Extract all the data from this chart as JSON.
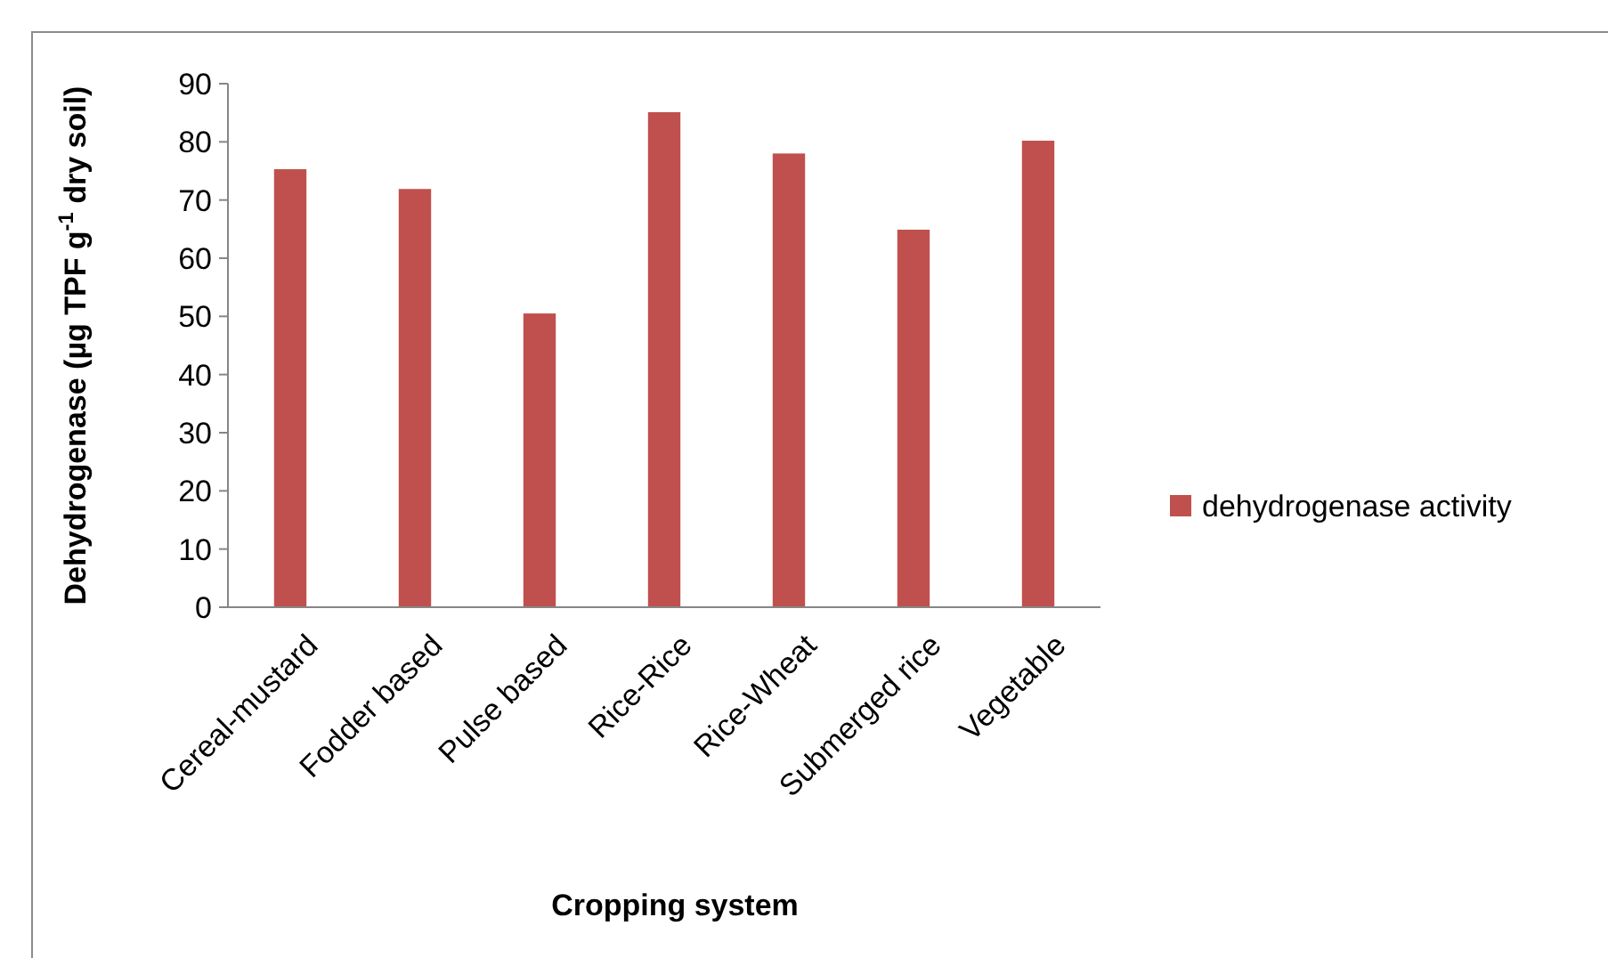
{
  "chart_data": {
    "type": "bar",
    "xlabel": "Cropping system",
    "ylabel": "Dehydrogenase (µg TPF g$^{-1}$ dry soil)",
    "categories": [
      "Cereal-mustard",
      "Fodder based",
      "Pulse based",
      "Rice-Rice",
      "Rice-Wheat",
      "Submerged rice",
      "Vegetable"
    ],
    "series": [
      {
        "name": "dehydrogenase activity",
        "color": "#c0504d",
        "values": [
          75.3,
          71.9,
          50.5,
          85.1,
          78,
          64.9,
          80.2
        ]
      }
    ],
    "ylim": [
      0,
      90
    ],
    "yticks": [
      0,
      10,
      20,
      30,
      40,
      50,
      60,
      70,
      80,
      90
    ],
    "grid": false,
    "legend": "right"
  }
}
